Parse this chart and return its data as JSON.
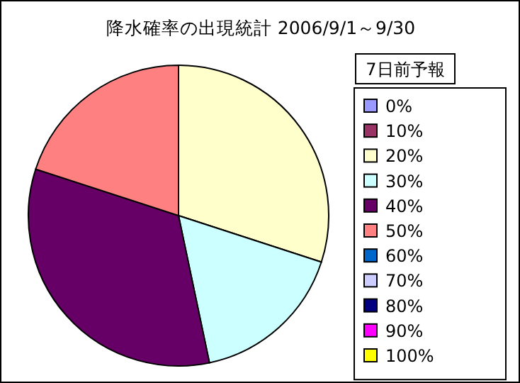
{
  "chart_data": {
    "type": "pie",
    "title": "降水確率の出現統計  2006/9/1～9/30",
    "legend_title": "7日前予報",
    "legend": "right",
    "categories": [
      "0%",
      "10%",
      "20%",
      "30%",
      "40%",
      "50%",
      "60%",
      "70%",
      "80%",
      "90%",
      "100%"
    ],
    "values": [
      0,
      0,
      30,
      16.7,
      33.3,
      20,
      0,
      0,
      0,
      0,
      0
    ],
    "colors": [
      "#9999ff",
      "#993366",
      "#ffffcc",
      "#ccffff",
      "#660066",
      "#ff8080",
      "#0066cc",
      "#ccccff",
      "#000080",
      "#ff00ff",
      "#ffff00"
    ]
  }
}
